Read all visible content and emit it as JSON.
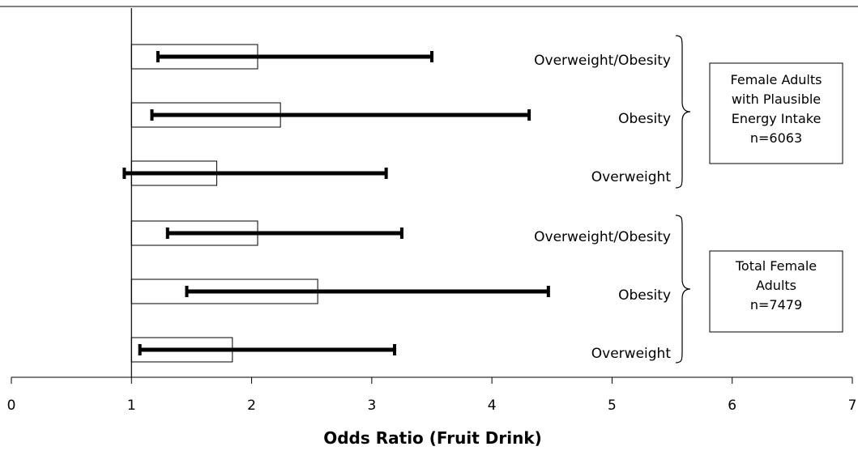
{
  "chart_data": {
    "type": "bar",
    "orientation": "horizontal",
    "xlabel": "Odds Ratio (Fruit Drink)",
    "xlim": [
      0,
      7
    ],
    "xticks": [
      0,
      1,
      2,
      3,
      4,
      5,
      6,
      7
    ],
    "bar_base": 1,
    "grid": false,
    "rows": [
      {
        "category": "Overweight/Obesity",
        "group": "plausible",
        "value": 2.05,
        "ci_low": 1.22,
        "ci_high": 3.5
      },
      {
        "category": "Obesity",
        "group": "plausible",
        "value": 2.24,
        "ci_low": 1.17,
        "ci_high": 4.31
      },
      {
        "category": "Overweight",
        "group": "plausible",
        "value": 1.71,
        "ci_low": 0.94,
        "ci_high": 3.12
      },
      {
        "category": "Overweight/Obesity",
        "group": "total",
        "value": 2.05,
        "ci_low": 1.3,
        "ci_high": 3.25
      },
      {
        "category": "Obesity",
        "group": "total",
        "value": 2.55,
        "ci_low": 1.46,
        "ci_high": 4.47
      },
      {
        "category": "Overweight",
        "group": "total",
        "value": 1.84,
        "ci_low": 1.07,
        "ci_high": 3.19
      }
    ],
    "groups": [
      {
        "id": "plausible",
        "lines": [
          "Female Adults",
          "with Plausible",
          "Energy Intake",
          "n=6063"
        ]
      },
      {
        "id": "total",
        "lines": [
          "Total Female",
          "Adults",
          "n=7479"
        ]
      }
    ]
  }
}
